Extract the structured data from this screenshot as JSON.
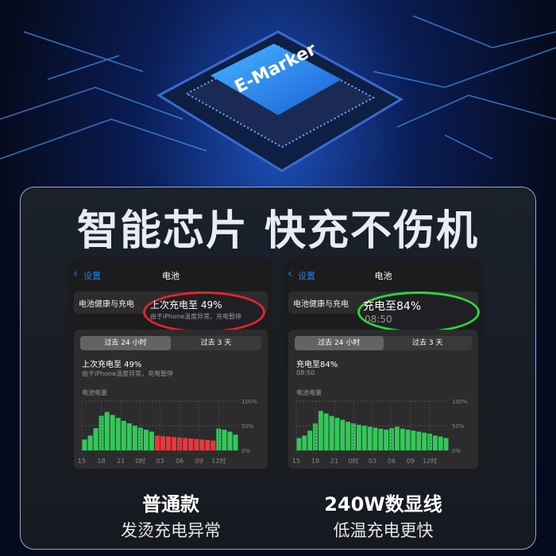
{
  "chip_label": "E-Marker",
  "headline": "智能芯片 快充不伤机",
  "panels": [
    {
      "nav_back": "设置",
      "nav_title": "电池",
      "health_row": "电池健康与充电",
      "popup": {
        "title": "上次充电至 49%",
        "subtitle": "由于iPhone温度异常，充电暂停",
        "ring_color": "#e0262b"
      },
      "tabs": [
        "过去 24 小时",
        "过去 3 天"
      ],
      "summary_title": "上次充电至 49%",
      "summary_sub": "由于iPhone温度异常，充电暂停",
      "chart": {
        "label": "电池电量",
        "ylim": [
          0,
          100
        ],
        "yticks": [
          {
            "value": 100,
            "label": "100%"
          },
          {
            "value": 50,
            "label": "50%"
          },
          {
            "value": 0,
            "label": "0%"
          }
        ],
        "x_labels": [
          "15",
          "18",
          "21",
          "0时",
          "03",
          "06",
          "09",
          "12时"
        ],
        "series": [
          {
            "color": "#34c759",
            "values": [
              22,
              30,
              45,
              70,
              78,
              72,
              66,
              60,
              55,
              50,
              46,
              42,
              38,
              null,
              null,
              null,
              null,
              null,
              null,
              null,
              null,
              null,
              null,
              null,
              44,
              42,
              38,
              32
            ]
          },
          {
            "color": "#e5393c",
            "values": [
              null,
              null,
              null,
              null,
              null,
              null,
              null,
              null,
              null,
              null,
              null,
              null,
              null,
              30,
              29,
              28,
              27,
              26,
              25,
              24,
              23,
              22,
              21,
              20,
              null,
              null,
              null,
              null
            ]
          }
        ]
      },
      "caption_title": "普通款",
      "caption_sub": "发烫充电异常"
    },
    {
      "nav_back": "设置",
      "nav_title": "电池",
      "health_row": "电池健康与充电",
      "popup": {
        "title": "充电至84%",
        "subtitle": "08:50",
        "ring_color": "#2fd33a"
      },
      "tabs": [
        "过去 24 小时",
        "过去 3 天"
      ],
      "summary_title": "充电至84%",
      "summary_sub": "08:50",
      "chart": {
        "label": "电池电量",
        "ylim": [
          0,
          100
        ],
        "yticks": [
          {
            "value": 100,
            "label": "100%"
          },
          {
            "value": 50,
            "label": "50%"
          },
          {
            "value": 0,
            "label": "0%"
          }
        ],
        "x_labels": [
          "15",
          "18",
          "21",
          "0时",
          "03",
          "06",
          "09",
          "12时"
        ],
        "series": [
          {
            "color": "#34c759",
            "values": [
              25,
              30,
              40,
              55,
              80,
              75,
              70,
              66,
              62,
              58,
              55,
              52,
              50,
              48,
              46,
              44,
              42,
              45,
              48,
              44,
              42,
              40,
              38,
              36,
              34,
              30,
              28,
              25
            ]
          }
        ]
      },
      "caption_title": "240W数显线",
      "caption_sub": "低温充电更快"
    }
  ]
}
